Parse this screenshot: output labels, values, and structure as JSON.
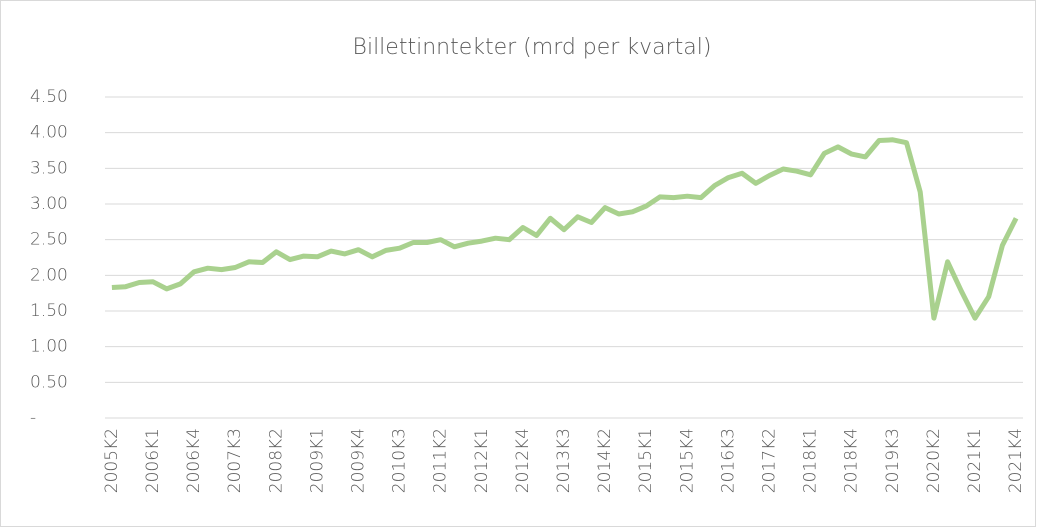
{
  "chart_data": {
    "type": "line",
    "title": "Billettinntekter (mrd per kvartal)",
    "categories": [
      "2005K2",
      null,
      null,
      "2006K1",
      null,
      null,
      "2006K4",
      null,
      null,
      "2007K3",
      null,
      null,
      "2008K2",
      null,
      null,
      "2009K1",
      null,
      null,
      "2009K4",
      null,
      null,
      "2010K3",
      null,
      null,
      "2011K2",
      null,
      null,
      "2012K1",
      null,
      null,
      "2012K4",
      null,
      null,
      "2013K3",
      null,
      null,
      "2014K2",
      null,
      null,
      "2015K1",
      null,
      null,
      "2015K4",
      null,
      null,
      "2016K3",
      null,
      null,
      "2017K2",
      null,
      null,
      "2018K1",
      null,
      null,
      "2018K4",
      null,
      null,
      "2019K3",
      null,
      null,
      "2020K2",
      null,
      null,
      "2021K1",
      null,
      null,
      "2021K4"
    ],
    "series": [
      {
        "name": "Billettinntekter",
        "color": "#a9d18e",
        "values": [
          1.83,
          1.84,
          1.9,
          1.91,
          1.81,
          1.88,
          2.05,
          2.1,
          2.08,
          2.11,
          2.19,
          2.18,
          2.33,
          2.22,
          2.27,
          2.26,
          2.34,
          2.3,
          2.36,
          2.26,
          2.35,
          2.38,
          2.46,
          2.46,
          2.5,
          2.4,
          2.45,
          2.48,
          2.52,
          2.5,
          2.67,
          2.56,
          2.8,
          2.64,
          2.82,
          2.74,
          2.95,
          2.86,
          2.89,
          2.97,
          3.1,
          3.09,
          3.11,
          3.09,
          3.26,
          3.37,
          3.43,
          3.29,
          3.4,
          3.49,
          3.46,
          3.41,
          3.71,
          3.8,
          3.7,
          3.66,
          3.89,
          3.9,
          3.86,
          3.17,
          1.4,
          2.19,
          1.78,
          1.4,
          1.7,
          2.42,
          2.8
        ]
      }
    ],
    "ylim": [
      0,
      4.5
    ],
    "yticks": [
      {
        "value": 0,
        "label": "-"
      },
      {
        "value": 0.5,
        "label": "0.50"
      },
      {
        "value": 1,
        "label": "1.00"
      },
      {
        "value": 1.5,
        "label": "1.50"
      },
      {
        "value": 2,
        "label": "2.00"
      },
      {
        "value": 2.5,
        "label": "2.50"
      },
      {
        "value": 3,
        "label": "3.00"
      },
      {
        "value": 3.5,
        "label": "3.50"
      },
      {
        "value": 4,
        "label": "4.00"
      },
      {
        "value": 4.5,
        "label": "4.50"
      }
    ],
    "grid": true
  }
}
